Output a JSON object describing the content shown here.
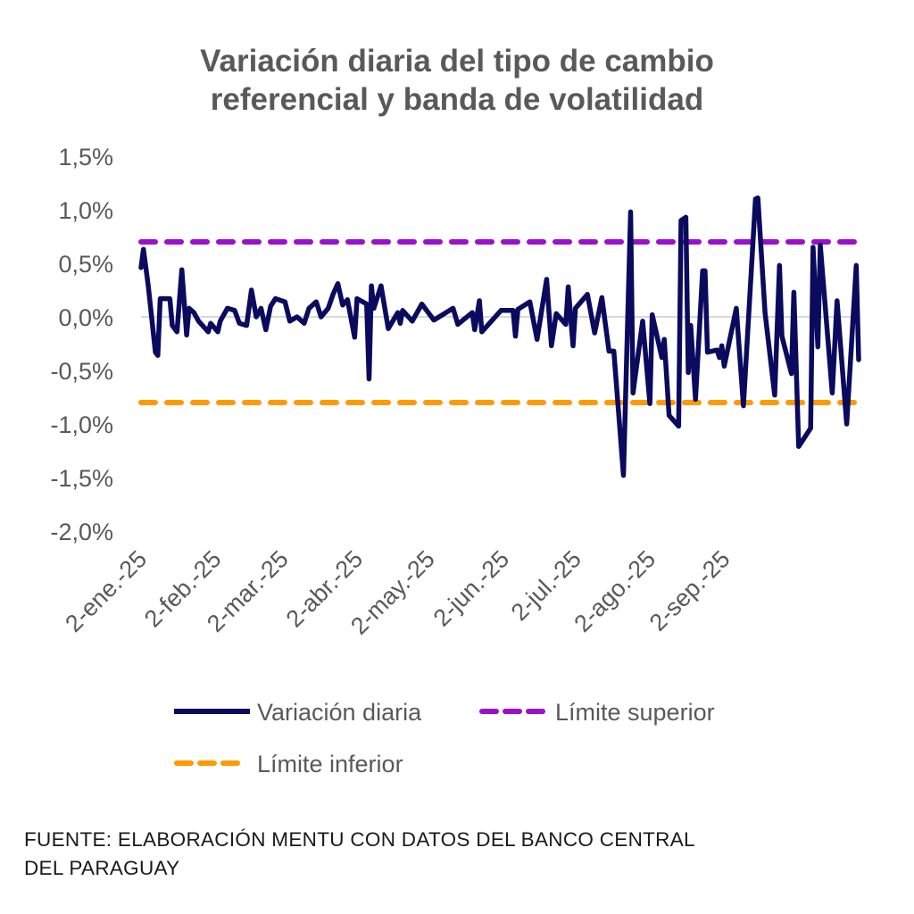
{
  "chart_data": {
    "type": "line",
    "title": [
      "Variación diaria del tipo de cambio",
      "referencial y banda de volatilidad"
    ],
    "xlabel": "",
    "ylabel": "",
    "x_unit": "days since 2-ene.-25",
    "xlim": [
      0,
      299
    ],
    "ylim": [
      -2.0,
      1.5
    ],
    "grid": "zero line only",
    "y_ticks": [
      1.5,
      1.0,
      0.5,
      0.0,
      -0.5,
      -1.0,
      -1.5,
      -2.0
    ],
    "y_tick_labels": [
      "1,5%",
      "1,0%",
      "0,5%",
      "0,0%",
      "-0,5%",
      "-1,0%",
      "-1,5%",
      "-2,0%"
    ],
    "x_ticks": [
      0,
      31,
      59,
      90,
      120,
      151,
      181,
      212,
      243
    ],
    "x_tick_labels": [
      "2-ene.-25",
      "2-feb.-25",
      "2-mar.-25",
      "2-abr.-25",
      "2-may.-25",
      "2-jun.-25",
      "2-jul.-25",
      "2-ago.-25",
      "2-sep.-25"
    ],
    "legend_placement": "bottom",
    "series": [
      {
        "name": "Variación diaria",
        "color": "#0a0a5e",
        "style": "solid",
        "x": [
          0,
          1,
          3,
          6,
          7,
          8,
          12,
          13,
          15,
          17,
          19,
          20,
          22,
          24,
          28,
          29,
          32,
          33,
          36,
          39,
          41,
          44,
          46,
          48,
          50,
          52,
          54,
          56,
          60,
          62,
          65,
          68,
          70,
          73,
          75,
          78,
          80,
          82,
          84,
          86,
          89,
          90,
          94,
          95,
          96,
          97,
          100,
          103,
          107,
          108,
          109,
          113,
          117,
          122,
          130,
          132,
          138,
          139,
          141,
          142,
          150,
          155,
          156,
          157,
          162,
          165,
          169,
          171,
          173,
          177,
          178,
          180,
          181,
          186,
          189,
          192,
          195,
          197,
          201,
          204,
          205,
          209,
          212,
          213,
          217,
          218,
          220,
          224,
          225,
          227,
          228,
          229,
          231,
          234,
          235,
          236,
          240,
          241,
          242,
          243,
          248,
          251,
          256,
          257,
          260,
          264,
          266,
          267,
          271,
          272,
          274,
          279,
          280,
          282,
          283,
          288,
          290,
          294,
          298,
          299
        ],
        "y": [
          0.46,
          0.63,
          0.29,
          -0.33,
          -0.36,
          0.17,
          0.17,
          -0.08,
          -0.14,
          0.44,
          -0.17,
          0.08,
          0.04,
          -0.04,
          -0.14,
          -0.06,
          -0.14,
          -0.04,
          0.08,
          0.06,
          -0.06,
          -0.08,
          0.25,
          0,
          0.08,
          -0.12,
          0.1,
          0.17,
          0.14,
          -0.04,
          0,
          -0.06,
          0.08,
          0.14,
          0,
          0.08,
          0.21,
          0.31,
          0.11,
          0.16,
          -0.19,
          0.17,
          0.12,
          -0.58,
          0.29,
          0.08,
          0.29,
          -0.11,
          0.04,
          -0.06,
          0.06,
          -0.04,
          0.12,
          -0.03,
          0.08,
          -0.07,
          0.04,
          -0.12,
          0.15,
          -0.14,
          0.06,
          0.06,
          -0.18,
          0.07,
          0.14,
          -0.21,
          0.35,
          -0.27,
          0.03,
          -0.07,
          0.28,
          -0.27,
          0.08,
          0.21,
          -0.15,
          0.18,
          -0.32,
          -0.32,
          -1.48,
          0.98,
          -0.71,
          -0.04,
          -0.81,
          0.02,
          -0.38,
          -0.21,
          -0.92,
          -1.02,
          0.9,
          0.93,
          -0.52,
          -0.08,
          -0.77,
          0.43,
          0.43,
          -0.33,
          -0.31,
          -0.38,
          -0.27,
          -0.46,
          0.08,
          -0.83,
          1.1,
          1.11,
          0.04,
          -0.73,
          0.48,
          -0.18,
          -0.53,
          0.23,
          -1.21,
          -1.04,
          0.65,
          -0.28,
          0.67,
          -0.71,
          0.15,
          -1.0,
          0.48,
          -0.4
        ]
      },
      {
        "name": "Límite superior",
        "color": "#9b10cc",
        "style": "dashed",
        "value": 0.7
      },
      {
        "name": "Límite inferior",
        "color": "#ff9a00",
        "style": "dashed",
        "value": -0.8
      }
    ]
  },
  "source": [
    "FUENTE: ELABORACIÓN MENTU CON DATOS DEL BANCO CENTRAL",
    "DEL PARAGUAY"
  ]
}
